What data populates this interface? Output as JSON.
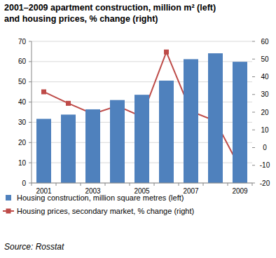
{
  "chart_data": {
    "type": "bar",
    "title": "2001–2009 apartment construction, million m² (left) and housing prices, % change (right)",
    "categories": [
      "2001",
      null,
      "2003",
      null,
      "2005",
      null,
      "2007",
      null,
      "2009"
    ],
    "series": [
      {
        "name": "Housing construction, million square metres (left)",
        "type": "bar",
        "color": "#4f81bd",
        "values": [
          31.7,
          33.8,
          36.4,
          41.0,
          43.6,
          50.6,
          61.2,
          64.1,
          59.9
        ]
      },
      {
        "name": "Housing prices, secondary market, % change (right)",
        "type": "line",
        "axis": "y2",
        "color": "#be4b48",
        "marker": "square",
        "values": [
          31.5,
          25,
          19,
          23.5,
          17.5,
          54,
          20.5,
          15,
          -11.5
        ]
      }
    ],
    "ylim": [
      0,
      70
    ],
    "yticks": [
      0,
      10,
      20,
      30,
      40,
      50,
      60,
      70
    ],
    "y2lim": [
      -20,
      60
    ],
    "y2ticks": [
      -20,
      -10,
      0,
      10,
      20,
      30,
      40,
      50,
      60
    ],
    "grid": true,
    "legend": "bottom",
    "source": "Source: Rosstat"
  }
}
